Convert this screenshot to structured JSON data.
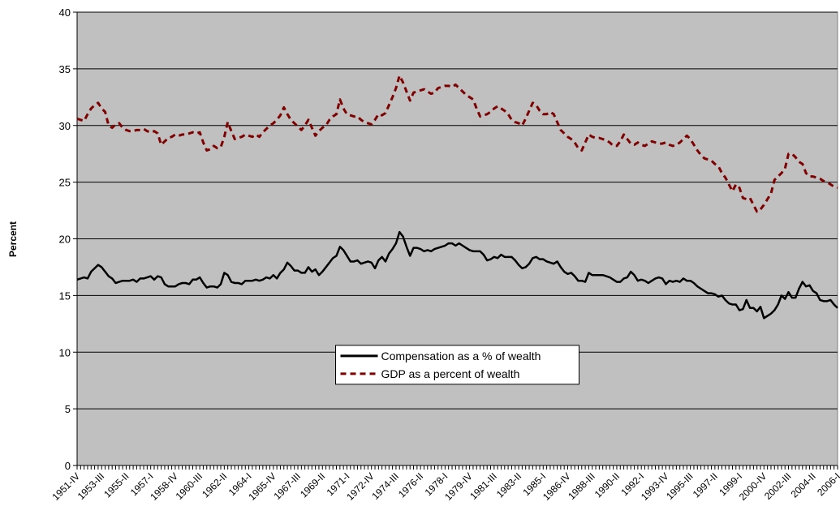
{
  "chart_data": {
    "type": "line",
    "y_label": "Percent",
    "categories": [
      "1951-IV",
      null,
      null,
      null,
      null,
      null,
      null,
      "1953-III",
      null,
      null,
      null,
      null,
      null,
      null,
      "1955-II",
      null,
      null,
      null,
      null,
      null,
      null,
      "1957-I",
      null,
      null,
      null,
      null,
      null,
      null,
      "1958-IV",
      null,
      null,
      null,
      null,
      null,
      null,
      "1960-III",
      null,
      null,
      null,
      null,
      null,
      null,
      "1962-II",
      null,
      null,
      null,
      null,
      null,
      null,
      "1964-I",
      null,
      null,
      null,
      null,
      null,
      null,
      "1965-IV",
      null,
      null,
      null,
      null,
      null,
      null,
      "1967-III",
      null,
      null,
      null,
      null,
      null,
      null,
      "1969-II",
      null,
      null,
      null,
      null,
      null,
      null,
      "1971-I",
      null,
      null,
      null,
      null,
      null,
      null,
      "1972-IV",
      null,
      null,
      null,
      null,
      null,
      null,
      "1974-III",
      null,
      null,
      null,
      null,
      null,
      null,
      "1976-II",
      null,
      null,
      null,
      null,
      null,
      null,
      "1978-I",
      null,
      null,
      null,
      null,
      null,
      null,
      "1979-IV",
      null,
      null,
      null,
      null,
      null,
      null,
      "1981-III",
      null,
      null,
      null,
      null,
      null,
      null,
      "1983-II",
      null,
      null,
      null,
      null,
      null,
      null,
      "1985-I",
      null,
      null,
      null,
      null,
      null,
      null,
      "1986-IV",
      null,
      null,
      null,
      null,
      null,
      null,
      "1988-III",
      null,
      null,
      null,
      null,
      null,
      null,
      "1990-II",
      null,
      null,
      null,
      null,
      null,
      null,
      "1992-I",
      null,
      null,
      null,
      null,
      null,
      null,
      "1993-IV",
      null,
      null,
      null,
      null,
      null,
      null,
      "1995-III",
      null,
      null,
      null,
      null,
      null,
      null,
      "1997-II",
      null,
      null,
      null,
      null,
      null,
      null,
      "1999-I",
      null,
      null,
      null,
      null,
      null,
      null,
      "2000-IV",
      null,
      null,
      null,
      null,
      null,
      null,
      "2002-III",
      null,
      null,
      null,
      null,
      null,
      null,
      "2004-II",
      null,
      null,
      null,
      null,
      null,
      null,
      "2006-I"
    ],
    "series": [
      {
        "name": "Compensation as a % of wealth",
        "color": "#000000",
        "dash": false,
        "values": [
          16.4,
          16.5,
          16.6,
          16.5,
          17.1,
          17.4,
          17.7,
          17.5,
          17.1,
          16.7,
          16.5,
          16.1,
          16.2,
          16.3,
          16.3,
          16.3,
          16.4,
          16.2,
          16.5,
          16.5,
          16.6,
          16.7,
          16.4,
          16.7,
          16.6,
          16.0,
          15.8,
          15.8,
          15.8,
          16.0,
          16.1,
          16.1,
          16.0,
          16.4,
          16.4,
          16.6,
          16.1,
          15.7,
          15.8,
          15.8,
          15.7,
          16.0,
          17.0,
          16.8,
          16.2,
          16.1,
          16.1,
          16.0,
          16.3,
          16.3,
          16.3,
          16.4,
          16.3,
          16.4,
          16.6,
          16.5,
          16.8,
          16.5,
          17.0,
          17.3,
          17.9,
          17.6,
          17.2,
          17.2,
          17.0,
          17.0,
          17.5,
          17.1,
          17.3,
          16.8,
          17.1,
          17.5,
          17.9,
          18.3,
          18.5,
          19.3,
          19.0,
          18.5,
          18.0,
          18.0,
          18.1,
          17.8,
          17.9,
          18.0,
          17.9,
          17.4,
          18.1,
          18.4,
          18.0,
          18.7,
          19.1,
          19.6,
          20.6,
          20.2,
          19.3,
          18.5,
          19.2,
          19.2,
          19.1,
          18.9,
          19.0,
          18.9,
          19.1,
          19.2,
          19.3,
          19.4,
          19.6,
          19.6,
          19.4,
          19.6,
          19.4,
          19.2,
          19.0,
          18.9,
          18.9,
          18.9,
          18.6,
          18.1,
          18.2,
          18.4,
          18.3,
          18.6,
          18.4,
          18.4,
          18.4,
          18.1,
          17.7,
          17.4,
          17.5,
          17.8,
          18.3,
          18.4,
          18.2,
          18.2,
          18.0,
          17.9,
          17.8,
          18.0,
          17.5,
          17.1,
          16.9,
          17.0,
          16.7,
          16.3,
          16.3,
          16.2,
          17.0,
          16.8,
          16.8,
          16.8,
          16.8,
          16.7,
          16.6,
          16.4,
          16.2,
          16.2,
          16.5,
          16.6,
          17.1,
          16.8,
          16.3,
          16.4,
          16.3,
          16.1,
          16.3,
          16.5,
          16.6,
          16.5,
          16.0,
          16.3,
          16.2,
          16.3,
          16.2,
          16.5,
          16.3,
          16.3,
          16.1,
          15.8,
          15.6,
          15.4,
          15.2,
          15.2,
          15.1,
          14.9,
          15.0,
          14.6,
          14.3,
          14.2,
          14.2,
          13.7,
          13.8,
          14.6,
          13.9,
          13.9,
          13.6,
          14.0,
          13.0,
          13.2,
          13.4,
          13.7,
          14.2,
          15.0,
          14.7,
          15.3,
          14.8,
          14.8,
          15.6,
          16.2,
          15.8,
          15.9,
          15.4,
          15.2,
          14.6,
          14.5,
          14.5,
          14.6,
          14.2,
          13.9
        ]
      },
      {
        "name": "GDP as a percent of wealth",
        "color": "#800000",
        "dash": true,
        "values": [
          30.6,
          30.5,
          30.4,
          31.0,
          31.5,
          31.8,
          32.0,
          31.5,
          31.2,
          30.0,
          29.8,
          30.1,
          30.2,
          29.8,
          29.6,
          29.5,
          29.5,
          29.6,
          29.6,
          29.7,
          29.5,
          29.4,
          29.5,
          29.3,
          28.3,
          28.6,
          28.9,
          29.0,
          29.2,
          29.1,
          29.2,
          29.2,
          29.3,
          29.4,
          29.3,
          29.4,
          28.5,
          27.8,
          27.9,
          28.2,
          28.0,
          28.1,
          29.0,
          30.3,
          29.5,
          28.8,
          28.9,
          29.0,
          29.2,
          29.1,
          29.0,
          29.2,
          29.0,
          29.4,
          29.7,
          30.0,
          30.2,
          30.5,
          30.9,
          31.6,
          31.0,
          30.5,
          30.2,
          29.9,
          29.6,
          30.0,
          30.5,
          29.8,
          29.1,
          29.5,
          29.8,
          30.0,
          30.5,
          30.8,
          31.0,
          32.3,
          31.5,
          31.0,
          30.9,
          30.8,
          30.8,
          30.5,
          30.3,
          30.2,
          30.1,
          30.5,
          31.0,
          30.9,
          31.1,
          31.8,
          32.5,
          33.3,
          34.4,
          33.8,
          33.0,
          32.2,
          32.9,
          33.0,
          33.1,
          33.2,
          33.0,
          32.8,
          32.9,
          33.3,
          33.4,
          33.5,
          33.5,
          33.4,
          33.6,
          33.3,
          33.0,
          32.7,
          32.5,
          32.3,
          31.5,
          30.8,
          30.9,
          31.0,
          31.2,
          31.5,
          31.7,
          31.5,
          31.3,
          31.0,
          30.5,
          30.3,
          30.2,
          30.0,
          30.6,
          31.3,
          32.0,
          31.8,
          31.3,
          31.0,
          31.0,
          31.2,
          31.0,
          30.3,
          29.6,
          29.3,
          29.0,
          28.8,
          28.5,
          28.0,
          27.8,
          28.5,
          29.2,
          29.0,
          28.9,
          28.9,
          28.8,
          28.7,
          28.5,
          28.2,
          28.2,
          28.6,
          29.2,
          28.8,
          28.4,
          28.3,
          28.5,
          28.3,
          28.2,
          28.4,
          28.6,
          28.5,
          28.4,
          28.4,
          28.5,
          28.3,
          28.2,
          28.3,
          28.5,
          28.8,
          29.1,
          28.8,
          28.3,
          27.8,
          27.4,
          27.1,
          27.0,
          26.9,
          26.6,
          26.4,
          25.8,
          25.4,
          24.8,
          24.2,
          24.8,
          24.5,
          23.6,
          23.5,
          23.6,
          23.0,
          22.4,
          22.6,
          23.0,
          23.5,
          24.0,
          25.2,
          25.5,
          25.8,
          26.2,
          27.5,
          27.5,
          27.2,
          26.8,
          26.6,
          25.8,
          25.5,
          25.5,
          25.4,
          25.3,
          25.1,
          25.0,
          24.8,
          24.6,
          24.5
        ]
      }
    ],
    "ylim": [
      0,
      40
    ],
    "yticks": [
      0,
      5,
      10,
      15,
      20,
      25,
      30,
      35,
      40
    ],
    "grid": true,
    "legend": "center",
    "background": "#c0c0c0"
  }
}
